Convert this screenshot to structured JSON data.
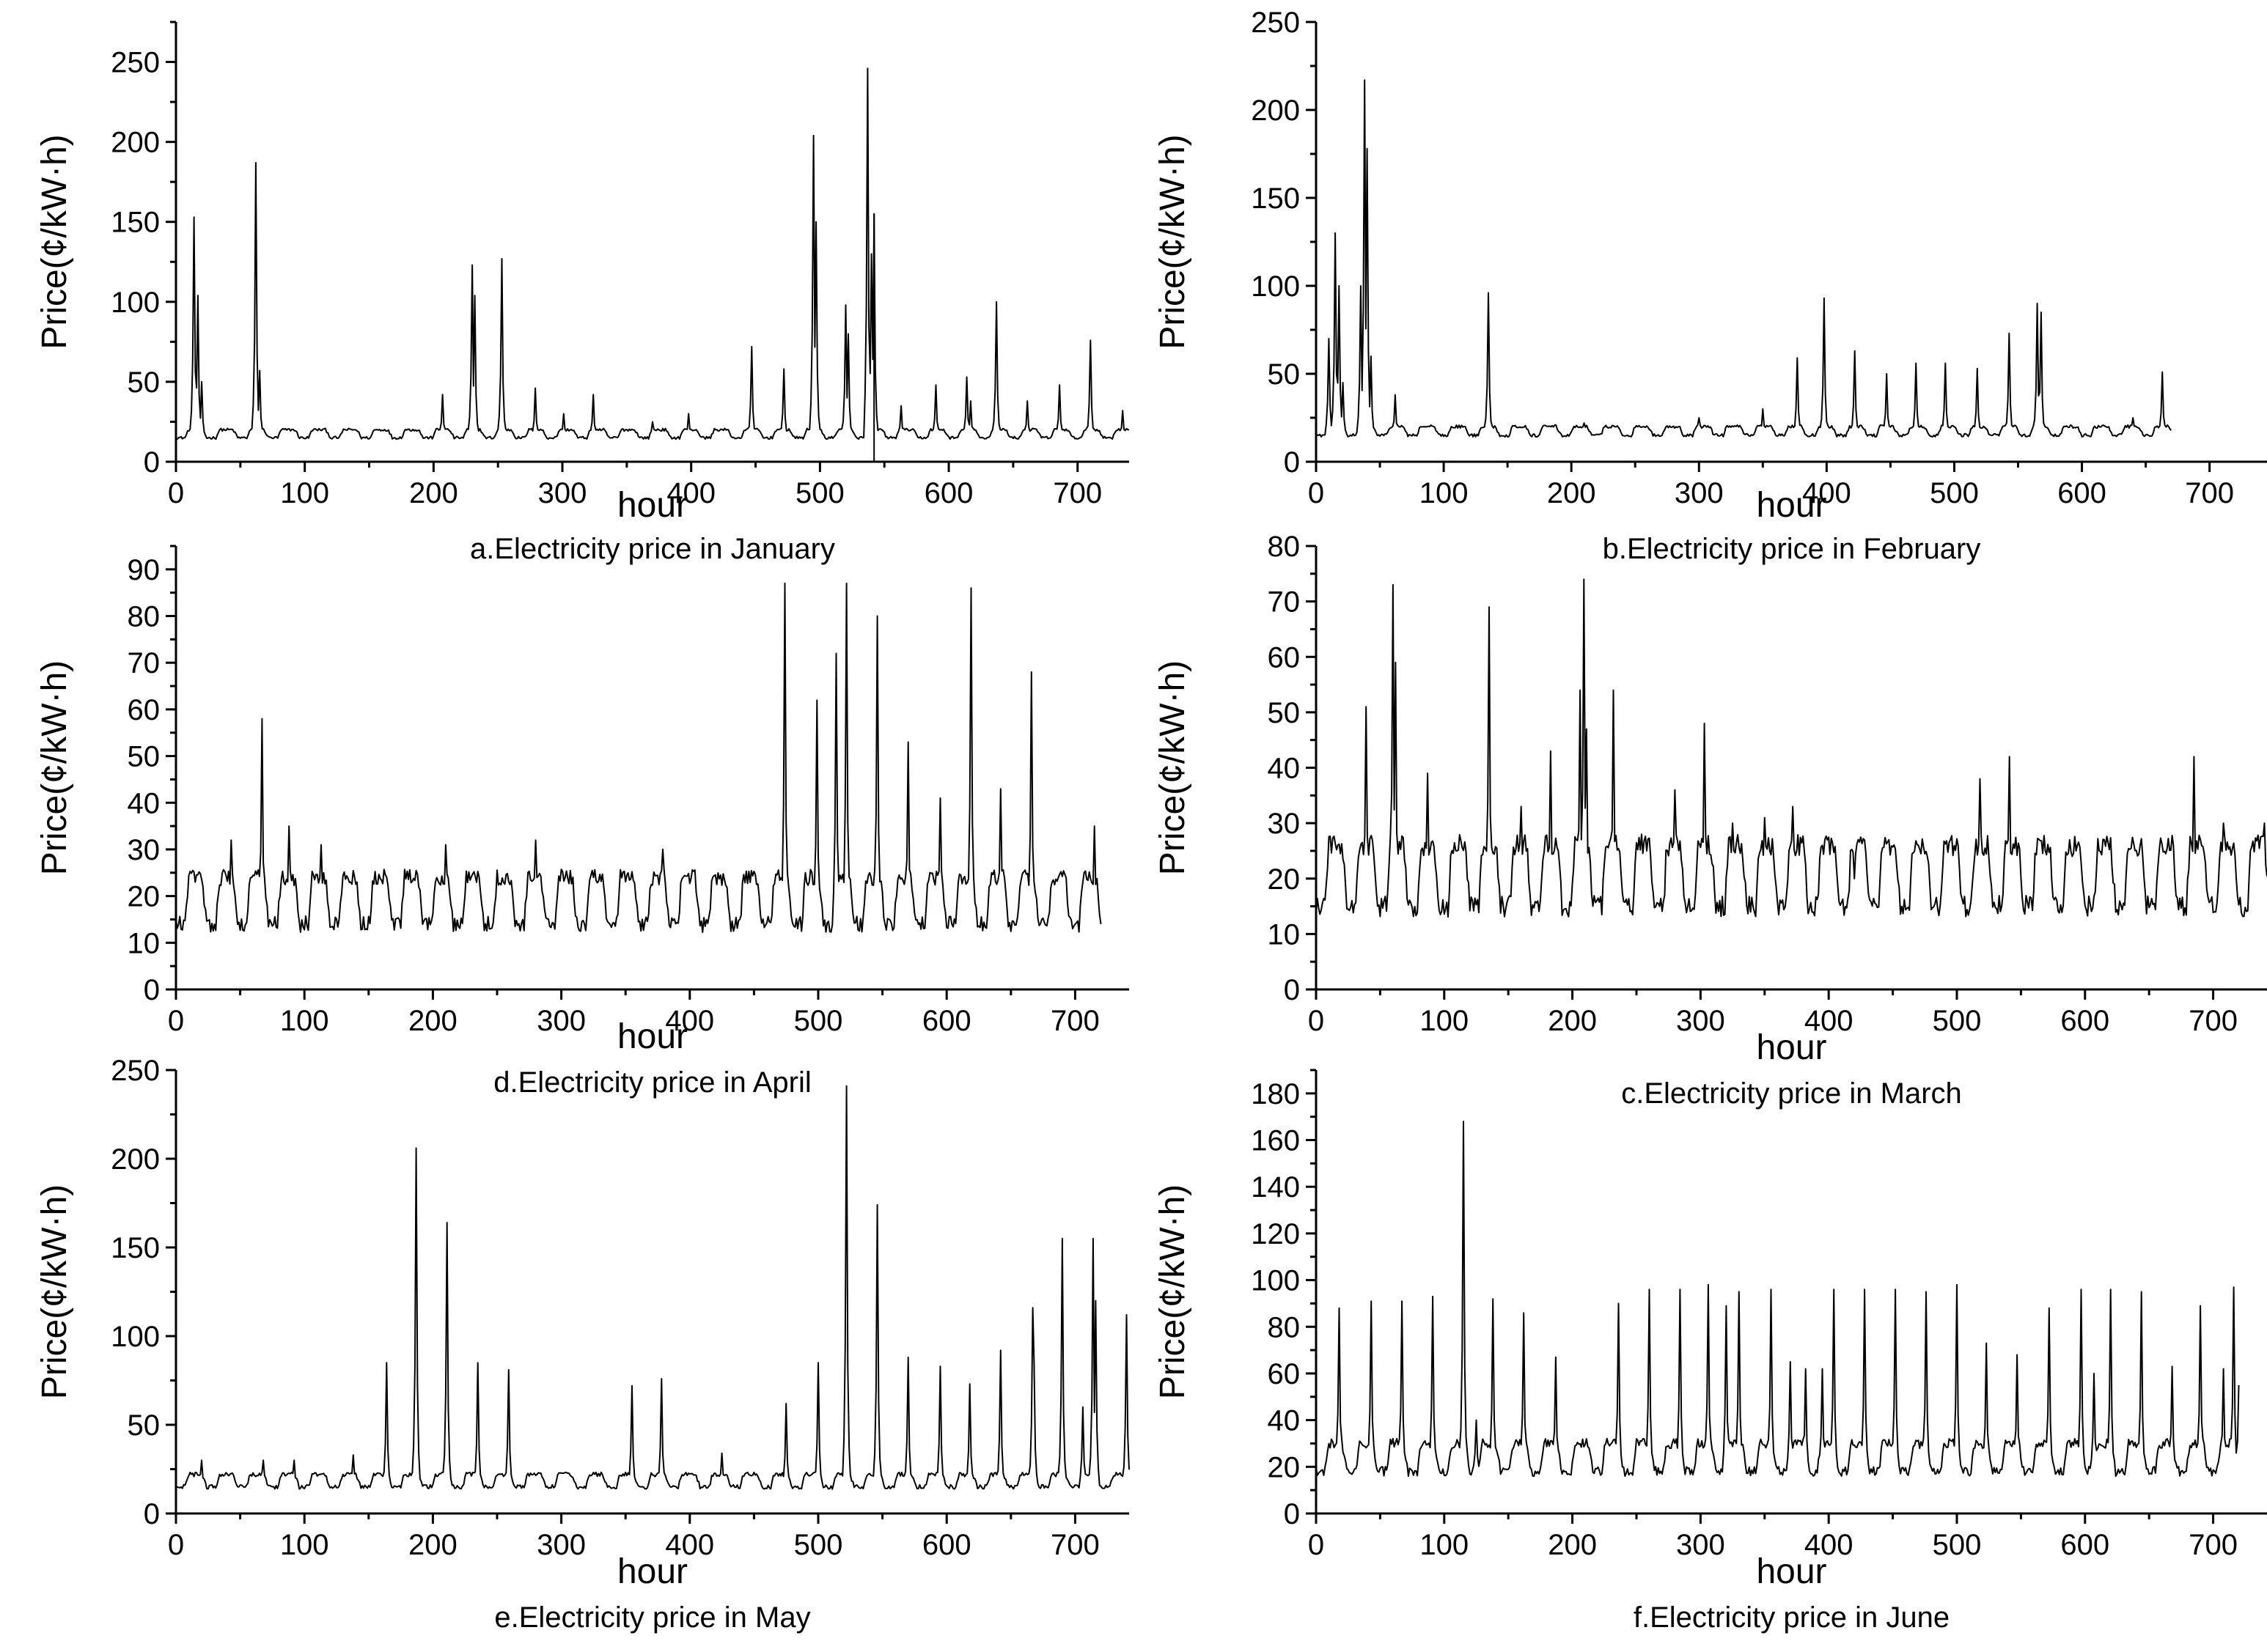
{
  "chart_data": [
    {
      "id": "a",
      "type": "line",
      "title": "a.Electricity price in January",
      "xlabel": "hour",
      "ylabel": "Price(¢/kW·h)",
      "xlim": [
        0,
        740
      ],
      "ylim": [
        0,
        275
      ],
      "xticks": [
        0,
        100,
        200,
        300,
        400,
        500,
        600,
        700
      ],
      "yticks": [
        0,
        50,
        100,
        150,
        200,
        250
      ],
      "xaxis_label_visible": true,
      "baseline": {
        "low": 15,
        "high": 20,
        "period": 24
      },
      "spikes": [
        [
          14,
          153
        ],
        [
          17,
          104
        ],
        [
          20,
          50
        ],
        [
          62,
          187
        ],
        [
          65,
          57
        ],
        [
          207,
          42
        ],
        [
          230,
          123
        ],
        [
          232,
          104
        ],
        [
          253,
          127
        ],
        [
          279,
          46
        ],
        [
          301,
          30
        ],
        [
          324,
          42
        ],
        [
          370,
          25
        ],
        [
          398,
          30
        ],
        [
          447,
          72
        ],
        [
          472,
          58
        ],
        [
          495,
          204
        ],
        [
          497,
          150
        ],
        [
          520,
          98
        ],
        [
          522,
          80
        ],
        [
          537,
          246
        ],
        [
          540,
          130
        ],
        [
          542,
          155
        ],
        [
          563,
          35
        ],
        [
          590,
          48
        ],
        [
          614,
          53
        ],
        [
          617,
          38
        ],
        [
          637,
          100
        ],
        [
          661,
          38
        ],
        [
          686,
          48
        ],
        [
          710,
          76
        ],
        [
          735,
          32
        ]
      ],
      "line_points": [],
      "markers": [
        {
          "x": 542,
          "y0": 0,
          "y1": 155
        }
      ]
    },
    {
      "id": "b",
      "type": "line",
      "title": "b.Electricity price in February",
      "xlabel": "hour",
      "ylabel": "Price(¢/kW·h)",
      "xlim": [
        0,
        745
      ],
      "ylim": [
        0,
        250
      ],
      "xticks": [
        0,
        100,
        200,
        300,
        400,
        500,
        600,
        700
      ],
      "yticks": [
        0,
        50,
        100,
        150,
        200,
        250
      ],
      "xaxis_label_visible": true,
      "xend": 670,
      "baseline": {
        "low": 15,
        "high": 20,
        "period": 24
      },
      "spikes": [
        [
          10,
          70
        ],
        [
          15,
          130
        ],
        [
          18,
          100
        ],
        [
          21,
          45
        ],
        [
          35,
          100
        ],
        [
          38,
          217
        ],
        [
          40,
          178
        ],
        [
          43,
          60
        ],
        [
          62,
          38
        ],
        [
          135,
          96
        ],
        [
          210,
          22
        ],
        [
          300,
          25
        ],
        [
          350,
          30
        ],
        [
          377,
          59
        ],
        [
          398,
          93
        ],
        [
          422,
          63
        ],
        [
          447,
          50
        ],
        [
          470,
          56
        ],
        [
          493,
          56
        ],
        [
          518,
          53
        ],
        [
          543,
          73
        ],
        [
          565,
          90
        ],
        [
          568,
          85
        ],
        [
          640,
          25
        ],
        [
          663,
          51
        ]
      ],
      "markers": []
    },
    {
      "id": "d",
      "type": "line",
      "title": "d.Electricity price in April",
      "xlabel": "hour",
      "ylabel": "Price(¢/kW·h)",
      "xlim": [
        0,
        742
      ],
      "ylim": [
        0,
        95
      ],
      "xticks": [
        0,
        100,
        200,
        300,
        400,
        500,
        600,
        700
      ],
      "yticks": [
        0,
        10,
        20,
        30,
        40,
        50,
        60,
        70,
        80,
        90
      ],
      "xaxis_label_visible": true,
      "xend": 720,
      "baseline": {
        "low": 14,
        "high": 24,
        "period": 24
      },
      "spikes": [
        [
          43,
          32
        ],
        [
          67,
          58
        ],
        [
          88,
          35
        ],
        [
          113,
          31
        ],
        [
          210,
          31
        ],
        [
          280,
          32
        ],
        [
          379,
          30
        ],
        [
          474,
          87
        ],
        [
          499,
          62
        ],
        [
          514,
          72
        ],
        [
          522,
          87
        ],
        [
          546,
          80
        ],
        [
          570,
          53
        ],
        [
          595,
          41
        ],
        [
          619,
          86
        ],
        [
          642,
          43
        ],
        [
          666,
          68
        ],
        [
          715,
          35
        ]
      ],
      "markers": []
    },
    {
      "id": "c",
      "type": "line",
      "title": "c.Electricity price in March",
      "xlabel": "hour",
      "ylabel": "Price(¢/kW·h)",
      "xlim": [
        0,
        742
      ],
      "ylim": [
        0,
        80
      ],
      "xticks": [
        0,
        100,
        200,
        300,
        400,
        500,
        600,
        700
      ],
      "yticks": [
        0,
        10,
        20,
        30,
        40,
        50,
        60,
        70,
        80
      ],
      "xaxis_label_visible": true,
      "baseline": {
        "low": 15,
        "high": 26,
        "period": 24
      },
      "spikes": [
        [
          39,
          51
        ],
        [
          60,
          73
        ],
        [
          62,
          59
        ],
        [
          87,
          39
        ],
        [
          110,
          25
        ],
        [
          135,
          69
        ],
        [
          160,
          33
        ],
        [
          183,
          43
        ],
        [
          206,
          54
        ],
        [
          209,
          74
        ],
        [
          211,
          47
        ],
        [
          232,
          54
        ],
        [
          254,
          28
        ],
        [
          280,
          36
        ],
        [
          303,
          48
        ],
        [
          325,
          30
        ],
        [
          350,
          31
        ],
        [
          372,
          33
        ],
        [
          395,
          26
        ],
        [
          420,
          20
        ],
        [
          495,
          27
        ],
        [
          518,
          38
        ],
        [
          541,
          42
        ],
        [
          590,
          24
        ],
        [
          685,
          42
        ],
        [
          708,
          30
        ],
        [
          740,
          30
        ]
      ],
      "markers": []
    },
    {
      "id": "e",
      "type": "line",
      "title": "e.Electricity price in May",
      "xlabel": "hour",
      "ylabel": "Price(¢/kW·h)",
      "xlim": [
        0,
        742
      ],
      "ylim": [
        0,
        250
      ],
      "xticks": [
        0,
        100,
        200,
        300,
        400,
        500,
        600,
        700
      ],
      "yticks": [
        0,
        50,
        100,
        150,
        200,
        250
      ],
      "xaxis_label_visible": true,
      "baseline": {
        "low": 15,
        "high": 22,
        "period": 24
      },
      "spikes": [
        [
          20,
          30
        ],
        [
          68,
          30
        ],
        [
          92,
          30
        ],
        [
          138,
          33
        ],
        [
          164,
          85
        ],
        [
          187,
          206
        ],
        [
          211,
          164
        ],
        [
          235,
          85
        ],
        [
          259,
          81
        ],
        [
          355,
          72
        ],
        [
          378,
          76
        ],
        [
          425,
          34
        ],
        [
          475,
          62
        ],
        [
          500,
          85
        ],
        [
          522,
          241
        ],
        [
          546,
          174
        ],
        [
          570,
          88
        ],
        [
          595,
          83
        ],
        [
          618,
          73
        ],
        [
          642,
          92
        ],
        [
          667,
          116
        ],
        [
          668,
          85
        ],
        [
          690,
          155
        ],
        [
          706,
          60
        ],
        [
          714,
          155
        ],
        [
          716,
          120
        ],
        [
          740,
          112
        ]
      ],
      "markers": []
    },
    {
      "id": "f",
      "type": "line",
      "title": "f.Electricity price in June",
      "xlabel": "hour",
      "ylabel": "Price(¢/kW·h)",
      "xlim": [
        0,
        742
      ],
      "ylim": [
        0,
        190
      ],
      "xticks": [
        0,
        100,
        200,
        300,
        400,
        500,
        600,
        700
      ],
      "yticks": [
        0,
        20,
        40,
        60,
        80,
        100,
        120,
        140,
        160,
        180
      ],
      "xaxis_label_visible": true,
      "xend": 720,
      "baseline": {
        "low": 18,
        "high": 30,
        "period": 24
      },
      "spikes": [
        [
          18,
          88
        ],
        [
          43,
          91
        ],
        [
          67,
          91
        ],
        [
          91,
          93
        ],
        [
          115,
          168
        ],
        [
          125,
          40
        ],
        [
          138,
          92
        ],
        [
          162,
          86
        ],
        [
          187,
          67
        ],
        [
          236,
          90
        ],
        [
          260,
          96
        ],
        [
          284,
          96
        ],
        [
          306,
          98
        ],
        [
          320,
          89
        ],
        [
          330,
          95
        ],
        [
          355,
          96
        ],
        [
          370,
          65
        ],
        [
          382,
          62
        ],
        [
          395,
          62
        ],
        [
          404,
          96
        ],
        [
          428,
          96
        ],
        [
          452,
          96
        ],
        [
          476,
          95
        ],
        [
          500,
          98
        ],
        [
          523,
          73
        ],
        [
          547,
          68
        ],
        [
          572,
          88
        ],
        [
          597,
          96
        ],
        [
          607,
          60
        ],
        [
          620,
          96
        ],
        [
          644,
          95
        ],
        [
          668,
          63
        ],
        [
          690,
          89
        ],
        [
          708,
          62
        ],
        [
          716,
          97
        ],
        [
          720,
          55
        ]
      ],
      "markers": []
    }
  ]
}
